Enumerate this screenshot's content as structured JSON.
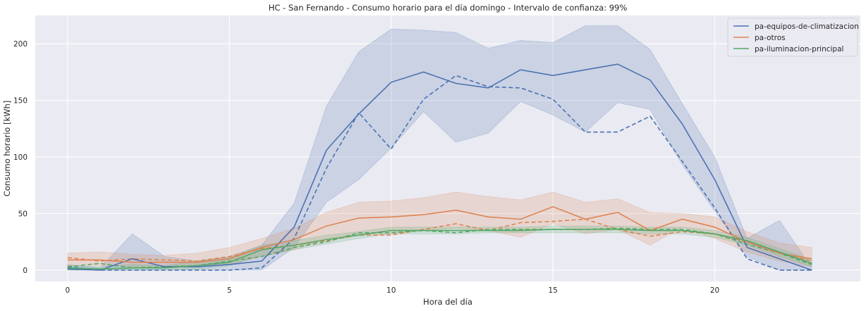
{
  "chart_data": {
    "type": "line",
    "title": "HC - San Fernando - Consumo horario para el día domingo - Intervalo de confianza: 99%",
    "xlabel": "Hora del día",
    "ylabel": "Consumo horario [kWh]",
    "xlim": [
      -1,
      24.5
    ],
    "ylim": [
      -10,
      225
    ],
    "xticks": [
      0,
      5,
      10,
      15,
      20
    ],
    "yticks": [
      0,
      50,
      100,
      150,
      200
    ],
    "grid": true,
    "legend_position": "top-right",
    "x": [
      0,
      1,
      2,
      3,
      4,
      5,
      6,
      7,
      8,
      9,
      10,
      11,
      12,
      13,
      14,
      15,
      16,
      17,
      18,
      19,
      20,
      21,
      22,
      23
    ],
    "series": [
      {
        "name": "pa-equipos-de-climatizacion",
        "color": "#4c72b0",
        "values": [
          1,
          0,
          10,
          3,
          3,
          5,
          8,
          38,
          106,
          138,
          166,
          175,
          165,
          161,
          177,
          172,
          177,
          182,
          168,
          129,
          80,
          20,
          10,
          0
        ],
        "ci_low": [
          0,
          0,
          0,
          0,
          0,
          0,
          0,
          20,
          60,
          80,
          108,
          140,
          113,
          121,
          149,
          137,
          122,
          148,
          142,
          93,
          52,
          12,
          0,
          0
        ],
        "ci_high": [
          5,
          2,
          32,
          12,
          8,
          12,
          22,
          59,
          145,
          193,
          213,
          212,
          210,
          196,
          203,
          201,
          216,
          216,
          195,
          147,
          100,
          28,
          44,
          2
        ],
        "dashed": [
          3,
          0,
          0,
          0,
          0,
          0,
          2,
          28,
          90,
          139,
          107,
          151,
          172,
          162,
          161,
          151,
          122,
          122,
          136,
          96,
          55,
          10,
          0,
          0
        ]
      },
      {
        "name": "pa-otros",
        "color": "#dd8452",
        "values": [
          9,
          9,
          7,
          7,
          7,
          10,
          20,
          27,
          39,
          46,
          47,
          49,
          53,
          47,
          45,
          56,
          45,
          51,
          35,
          45,
          38,
          25,
          15,
          10
        ],
        "ci_low": [
          4,
          4,
          3,
          3,
          3,
          5,
          12,
          18,
          28,
          32,
          32,
          35,
          37,
          35,
          29,
          41,
          32,
          36,
          22,
          38,
          28,
          16,
          8,
          3
        ],
        "ci_high": [
          15,
          16,
          14,
          13,
          15,
          20,
          28,
          37,
          51,
          60,
          61,
          64,
          69,
          65,
          62,
          69,
          60,
          63,
          51,
          50,
          47,
          34,
          24,
          20
        ],
        "dashed": [
          11,
          8,
          10,
          9,
          8,
          12,
          19,
          22,
          26,
          31,
          31,
          36,
          41,
          35,
          42,
          43,
          45,
          36,
          30,
          34,
          32,
          25,
          15,
          8
        ]
      },
      {
        "name": "pa-iluminacion-principal",
        "color": "#55a868",
        "values": [
          2,
          1,
          2,
          2,
          4,
          7,
          18,
          22,
          27,
          31,
          35,
          35,
          35,
          35,
          35,
          36,
          36,
          36,
          35,
          35,
          32,
          26,
          16,
          6
        ],
        "ci_low": [
          0,
          0,
          0,
          0,
          1,
          4,
          13,
          18,
          23,
          28,
          32,
          32,
          32,
          33,
          33,
          33,
          33,
          33,
          32,
          32,
          29,
          22,
          12,
          3
        ],
        "ci_high": [
          4,
          3,
          5,
          4,
          8,
          11,
          22,
          26,
          31,
          34,
          38,
          38,
          38,
          38,
          38,
          39,
          39,
          39,
          38,
          38,
          35,
          29,
          19,
          9
        ],
        "dashed": [
          3,
          6,
          2,
          3,
          4,
          8,
          12,
          20,
          25,
          33,
          33,
          35,
          33,
          36,
          36,
          36,
          36,
          37,
          36,
          36,
          32,
          23,
          15,
          5
        ]
      }
    ]
  }
}
